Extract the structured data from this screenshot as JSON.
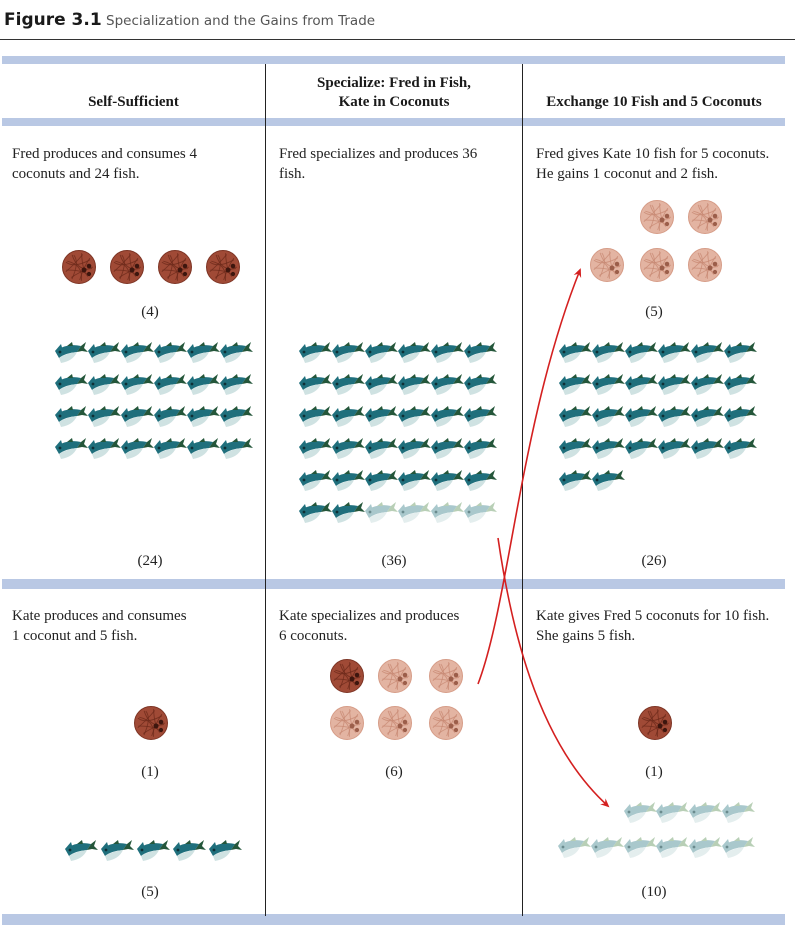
{
  "figure": {
    "label": "Figure 3.1",
    "caption": "Specialization and the Gains from Trade"
  },
  "columns": [
    {
      "title": "Self-Sufficient"
    },
    {
      "title_line1": "Specialize: Fred in Fish,",
      "title_line2": "Kate in Coconuts"
    },
    {
      "title": "Exchange 10 Fish and 5 Coconuts"
    }
  ],
  "fred": {
    "self_sufficient": {
      "text": [
        "Fred produces and consumes 4",
        "coconuts and 24 fish."
      ],
      "coconuts": 4,
      "fish": 24,
      "coconut_label": "(4)",
      "fish_label": "(24)"
    },
    "specialize": {
      "text": [
        "Fred specializes and produces 36",
        "fish."
      ],
      "fish": 36,
      "fish_label": "(36)"
    },
    "exchange": {
      "text": [
        "Fred gives Kate 10 fish for 5 coconuts.",
        "He gains 1 coconut and 2 fish."
      ],
      "coconuts": 5,
      "fish": 26,
      "coconut_label": "(5)",
      "fish_label": "(26)"
    }
  },
  "kate": {
    "self_sufficient": {
      "text": [
        "Kate produces and consumes",
        "1 coconut and 5 fish."
      ],
      "coconuts": 1,
      "fish": 5,
      "coconut_label": "(1)",
      "fish_label": "(5)"
    },
    "specialize": {
      "text": [
        "Kate specializes and produces",
        "6 coconuts."
      ],
      "coconuts": 6,
      "coconut_label": "(6)"
    },
    "exchange": {
      "text": [
        "Kate gives Fred 5 coconuts for 10 fish.",
        "She gains 5 fish."
      ],
      "coconuts": 1,
      "fish": 10,
      "coconut_label": "(1)",
      "fish_label": "(10)"
    }
  },
  "colors": {
    "band": "#b9c8e4",
    "coconut_dark": "#a04a36",
    "coconut_light": "#e3b4a2",
    "fish_dark": "#1f6f7c",
    "fish_light": "#a9c8cc",
    "arrow": "#d42020"
  },
  "icons": {
    "coconut": "coconut-icon",
    "fish": "fish-icon",
    "arrow": "trade-arrow"
  }
}
